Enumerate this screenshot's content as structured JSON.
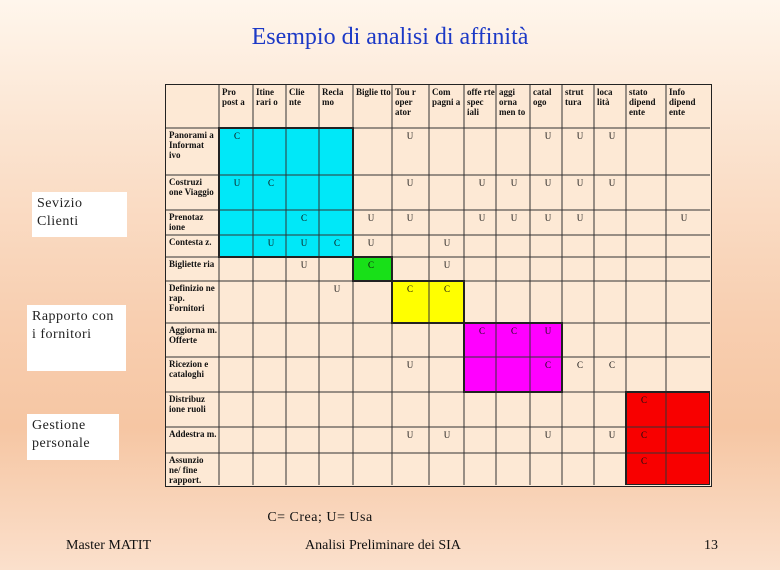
{
  "title": "Esempio di analisi di affinità",
  "side_labels": {
    "clienti": "Sevizio Clienti",
    "fornitori": "Rapporto con i fornitori",
    "personale": "Gestione personale"
  },
  "columns": [
    "Pro post a",
    "Itine rari o",
    "Clie nte",
    "Recla mo",
    "Biglie tto",
    "Tou r oper ator",
    "Com pagni a",
    "offe rte spec iali",
    "aggi orna men to",
    "catal ogo",
    "strut tura",
    "loca lità",
    "stato dipend ente",
    "Info dipend ente"
  ],
  "rows": [
    "Panorami a Informat ivo",
    "Costruzi one Viaggio",
    "Prenotaz ione",
    "Contesta z.",
    "Bigliette ria",
    "Definizio ne rap. Fornitori",
    "Aggiorna m. Offerte",
    "Ricezion e cataloghi",
    "Distribuz ione ruoli",
    "Addestra m.",
    "Assunzio ne/ fine rapport."
  ],
  "cells": [
    [
      "C",
      "",
      "",
      "",
      "",
      "U",
      "",
      "",
      "",
      "U",
      "U",
      "U",
      "",
      ""
    ],
    [
      "U",
      "C",
      "",
      "",
      "",
      "U",
      "",
      "U",
      "U",
      "U",
      "U",
      "U",
      "",
      ""
    ],
    [
      "",
      "",
      "C",
      "",
      "U",
      "U",
      "",
      "U",
      "U",
      "U",
      "U",
      "",
      "",
      "U"
    ],
    [
      "",
      "U",
      "U",
      "C",
      "U",
      "",
      "U",
      "",
      "",
      "",
      "",
      "",
      "",
      ""
    ],
    [
      "",
      "",
      "U",
      "",
      "C",
      "",
      "U",
      "",
      "",
      "",
      "",
      "",
      "",
      ""
    ],
    [
      "",
      "",
      "",
      "U",
      "",
      "C",
      "C",
      "",
      "",
      "",
      "",
      "",
      "",
      ""
    ],
    [
      "",
      "",
      "",
      "",
      "",
      "",
      "",
      "C",
      "C",
      "U",
      "",
      "",
      "",
      ""
    ],
    [
      "",
      "",
      "",
      "",
      "",
      "U",
      "",
      "",
      "",
      "C",
      "C",
      "C",
      "",
      ""
    ],
    [
      "",
      "",
      "",
      "",
      "",
      "",
      "",
      "",
      "",
      "",
      "",
      "",
      "C",
      ""
    ],
    [
      "",
      "",
      "",
      "",
      "",
      "U",
      "U",
      "",
      "",
      "U",
      "",
      "U",
      "C",
      ""
    ],
    [
      "",
      "",
      "",
      "",
      "",
      "",
      "",
      "",
      "",
      "",
      "",
      "",
      "C",
      ""
    ]
  ],
  "colors": {
    "cyan": "#00e8f8",
    "green": "#18e018",
    "yellow": "#ffff00",
    "magenta": "#ff00ff",
    "red": "#f80000",
    "title_blue": "#1c39c6"
  },
  "legend": "C= Crea; U= Usa",
  "footer": {
    "left": "Master MATIT",
    "center": "Analisi Preliminare dei SIA",
    "page": "13"
  }
}
